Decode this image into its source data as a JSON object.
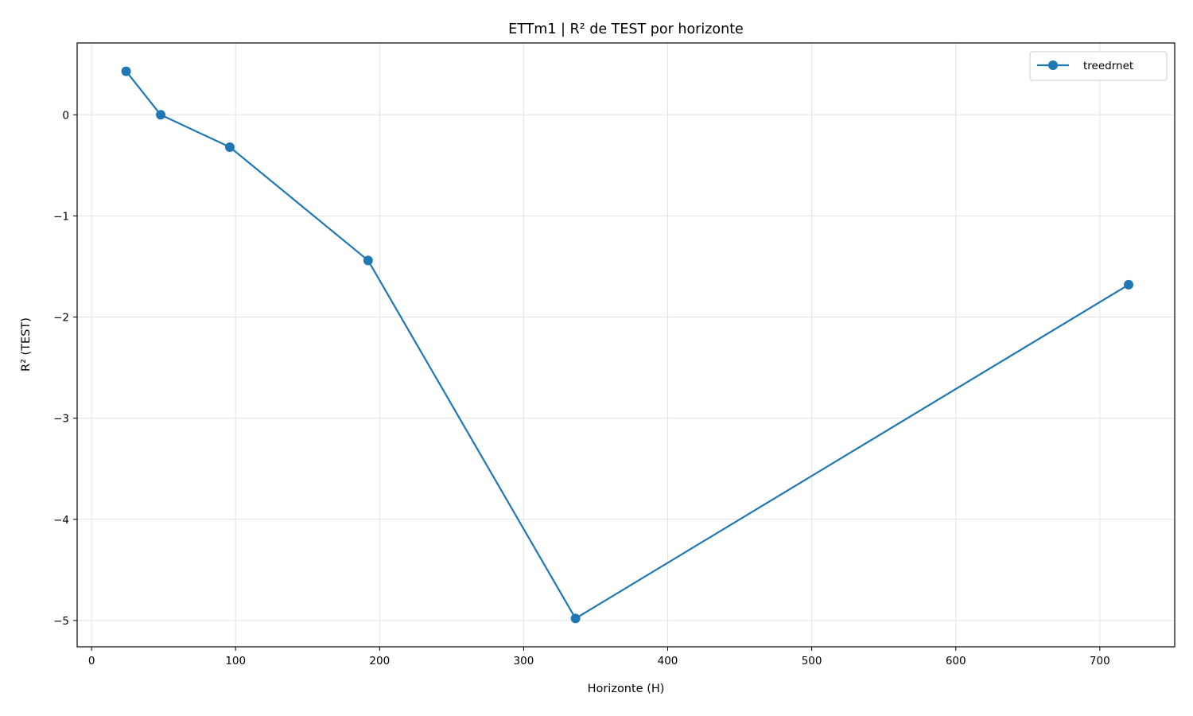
{
  "chart_data": {
    "type": "line",
    "title": "ETTm1 | R² de TEST por horizonte",
    "xlabel": "Horizonte (H)",
    "ylabel": "R² (TEST)",
    "xlim": [
      -10,
      752
    ],
    "ylim": [
      -5.26,
      0.71
    ],
    "xticks": [
      0,
      100,
      200,
      300,
      400,
      500,
      600,
      700
    ],
    "yticks": [
      0,
      -1,
      -2,
      -3,
      -4,
      -5
    ],
    "ytick_labels": [
      "0",
      "−1",
      "−2",
      "−3",
      "−4",
      "−5"
    ],
    "grid": true,
    "legend_position": "top-right",
    "series": [
      {
        "name": "treedrnet",
        "color": "#1f77b4",
        "marker": "circle",
        "x": [
          24,
          48,
          96,
          192,
          336,
          720
        ],
        "y": [
          0.43,
          0.0,
          -0.32,
          -1.44,
          -4.98,
          -1.68
        ]
      }
    ]
  }
}
